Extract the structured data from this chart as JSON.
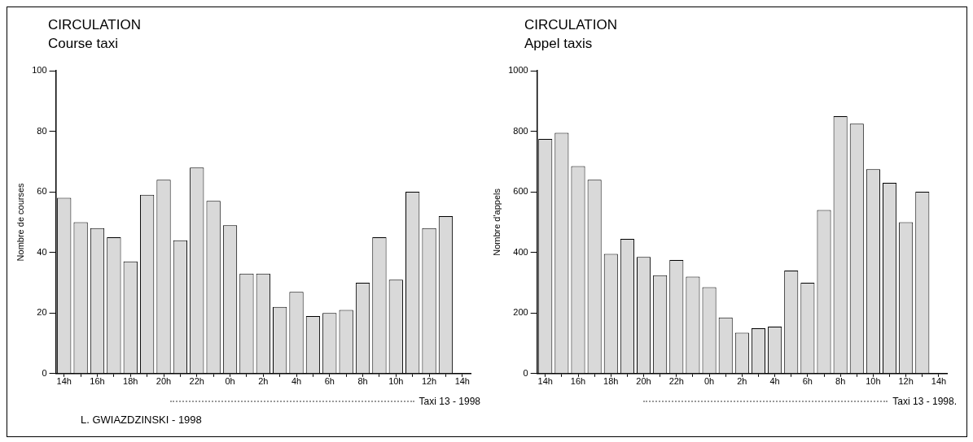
{
  "chart_data": [
    {
      "type": "bar",
      "title": "CIRCULATION",
      "subtitle": "Course taxi",
      "ylabel": "Nombre de courses",
      "categories": [
        "14h",
        null,
        "16h",
        null,
        "18h",
        null,
        "20h",
        null,
        "22h",
        null,
        "0h",
        null,
        "2h",
        null,
        "4h",
        null,
        "6h",
        null,
        "8h",
        null,
        "10h",
        null,
        "12h",
        null,
        "14h"
      ],
      "values": [
        58,
        50,
        48,
        45,
        37,
        59,
        64,
        44,
        68,
        57,
        49,
        33,
        33,
        22,
        27,
        19,
        20,
        21,
        30,
        45,
        31,
        60,
        48,
        52,
        null
      ],
      "color": "#d9d9d9",
      "ylim": [
        0,
        100
      ],
      "yticks": [
        0,
        20,
        40,
        60,
        80,
        100
      ],
      "annotations": [
        "Taxi 13 - 1998",
        "L. GWIAZDZINSKI - 1998"
      ]
    },
    {
      "type": "bar",
      "title": "CIRCULATION",
      "subtitle": "Appel taxis",
      "ylabel": "Nombre d'appels",
      "categories": [
        "14h",
        null,
        "16h",
        null,
        "18h",
        null,
        "20h",
        null,
        "22h",
        null,
        "0h",
        null,
        "2h",
        null,
        "4h",
        null,
        "6h",
        null,
        "8h",
        null,
        "10h",
        null,
        "12h",
        null,
        "14h"
      ],
      "values": [
        775,
        795,
        685,
        640,
        395,
        445,
        385,
        325,
        375,
        320,
        285,
        185,
        135,
        150,
        155,
        340,
        300,
        540,
        850,
        825,
        675,
        630,
        500,
        600,
        null
      ],
      "color": "#d9d9d9",
      "ylim": [
        0,
        1000
      ],
      "yticks": [
        0,
        200,
        400,
        600,
        800,
        1000
      ],
      "annotations": [
        "Taxi 13 - 1998."
      ]
    }
  ]
}
